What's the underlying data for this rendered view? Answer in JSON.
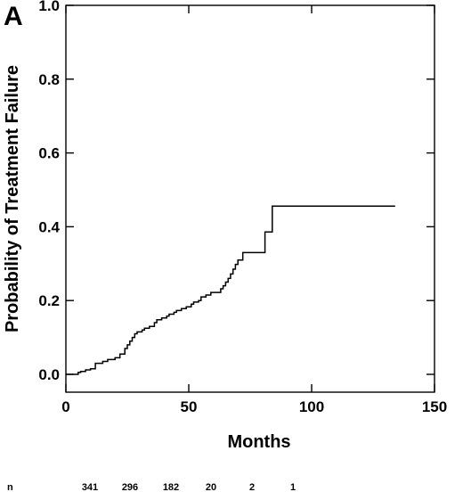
{
  "chart_data": {
    "type": "line",
    "panel_label": "A",
    "xlabel": "Months",
    "ylabel": "Probability of Treatment Failure",
    "xlim": [
      0,
      150
    ],
    "ylim": [
      0.0,
      1.0
    ],
    "x_ticks": [
      0,
      50,
      100,
      150
    ],
    "y_ticks": [
      0.0,
      0.2,
      0.4,
      0.6,
      0.8,
      1.0
    ],
    "x_tick_labels": [
      "0",
      "50",
      "100",
      "150"
    ],
    "y_tick_labels": [
      "0.0",
      "0.2",
      "0.4",
      "0.6",
      "0.8",
      "1.0"
    ],
    "grid": false,
    "series": [
      {
        "style": "step",
        "points": [
          [
            0,
            0.0
          ],
          [
            5,
            0.0
          ],
          [
            5,
            0.005
          ],
          [
            6,
            0.008
          ],
          [
            8,
            0.012
          ],
          [
            10,
            0.015
          ],
          [
            12,
            0.03
          ],
          [
            15,
            0.035
          ],
          [
            17,
            0.04
          ],
          [
            20,
            0.045
          ],
          [
            22,
            0.055
          ],
          [
            24,
            0.07
          ],
          [
            25,
            0.08
          ],
          [
            26,
            0.09
          ],
          [
            27,
            0.1
          ],
          [
            28,
            0.11
          ],
          [
            29,
            0.115
          ],
          [
            31,
            0.12
          ],
          [
            32,
            0.125
          ],
          [
            34,
            0.13
          ],
          [
            36,
            0.14
          ],
          [
            37,
            0.148
          ],
          [
            39,
            0.153
          ],
          [
            41,
            0.158
          ],
          [
            42,
            0.163
          ],
          [
            44,
            0.168
          ],
          [
            45,
            0.173
          ],
          [
            47,
            0.178
          ],
          [
            49,
            0.183
          ],
          [
            51,
            0.19
          ],
          [
            52,
            0.196
          ],
          [
            54,
            0.2
          ],
          [
            55,
            0.21
          ],
          [
            57,
            0.215
          ],
          [
            59,
            0.222
          ],
          [
            63,
            0.232
          ],
          [
            64,
            0.24
          ],
          [
            65,
            0.25
          ],
          [
            66,
            0.26
          ],
          [
            67,
            0.272
          ],
          [
            68,
            0.285
          ],
          [
            69,
            0.298
          ],
          [
            70,
            0.31
          ],
          [
            72,
            0.33
          ],
          [
            80,
            0.33
          ],
          [
            81,
            0.386
          ],
          [
            83,
            0.386
          ],
          [
            84,
            0.456
          ],
          [
            134,
            0.456
          ]
        ]
      }
    ],
    "risk_table": {
      "label": "n",
      "values": [
        "341",
        "296",
        "182",
        "20",
        "2",
        "1"
      ]
    }
  }
}
